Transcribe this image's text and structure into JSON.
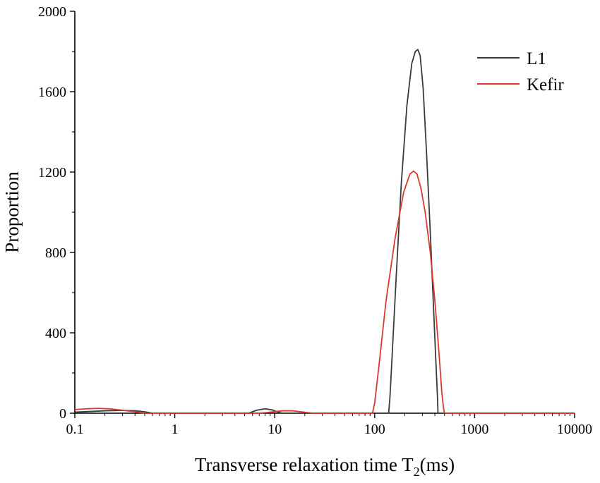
{
  "chart_data": {
    "type": "line",
    "title": "",
    "xlabel_main": "Transverse relaxation time T",
    "xlabel_sub": "2",
    "xlabel_unit": "(ms)",
    "ylabel": "Proportion",
    "x_scale": "log",
    "xlim": [
      0.1,
      10000
    ],
    "ylim": [
      0,
      2000
    ],
    "x_ticks": [
      0.1,
      1,
      10,
      100,
      1000,
      10000
    ],
    "x_tick_labels": [
      "0.1",
      "1",
      "10",
      "100",
      "1000",
      "10000"
    ],
    "y_ticks": [
      0,
      400,
      800,
      1200,
      1600,
      2000
    ],
    "y_tick_labels": [
      "0",
      "400",
      "800",
      "1200",
      "1600",
      "2000"
    ],
    "grid": false,
    "legend_position": "top-right",
    "series": [
      {
        "name": "L1",
        "color": "#3a3a3a",
        "points": [
          [
            0.1,
            5
          ],
          [
            0.15,
            9
          ],
          [
            0.2,
            12
          ],
          [
            0.3,
            14
          ],
          [
            0.4,
            12
          ],
          [
            0.5,
            7
          ],
          [
            0.6,
            0
          ],
          [
            5.5,
            0
          ],
          [
            6.5,
            14
          ],
          [
            8,
            22
          ],
          [
            9.5,
            16
          ],
          [
            11,
            4
          ],
          [
            12,
            0
          ],
          [
            138,
            0
          ],
          [
            142,
            75
          ],
          [
            150,
            300
          ],
          [
            165,
            700
          ],
          [
            185,
            1150
          ],
          [
            210,
            1530
          ],
          [
            235,
            1740
          ],
          [
            255,
            1800
          ],
          [
            270,
            1810
          ],
          [
            285,
            1780
          ],
          [
            305,
            1620
          ],
          [
            330,
            1300
          ],
          [
            360,
            900
          ],
          [
            390,
            500
          ],
          [
            410,
            250
          ],
          [
            425,
            80
          ],
          [
            430,
            0
          ],
          [
            10000,
            0
          ]
        ]
      },
      {
        "name": "Kefir",
        "color": "#d93a2b",
        "points": [
          [
            0.1,
            18
          ],
          [
            0.13,
            22
          ],
          [
            0.17,
            24
          ],
          [
            0.22,
            22
          ],
          [
            0.3,
            15
          ],
          [
            0.4,
            7
          ],
          [
            0.5,
            0
          ],
          [
            7,
            0
          ],
          [
            9,
            5
          ],
          [
            12,
            12
          ],
          [
            15,
            12
          ],
          [
            19,
            6
          ],
          [
            24,
            0
          ],
          [
            95,
            0
          ],
          [
            100,
            50
          ],
          [
            110,
            230
          ],
          [
            130,
            560
          ],
          [
            160,
            870
          ],
          [
            195,
            1100
          ],
          [
            225,
            1190
          ],
          [
            245,
            1205
          ],
          [
            265,
            1190
          ],
          [
            290,
            1120
          ],
          [
            320,
            1000
          ],
          [
            360,
            800
          ],
          [
            400,
            560
          ],
          [
            440,
            300
          ],
          [
            470,
            100
          ],
          [
            490,
            20
          ],
          [
            500,
            0
          ],
          [
            10000,
            0
          ]
        ]
      }
    ]
  }
}
